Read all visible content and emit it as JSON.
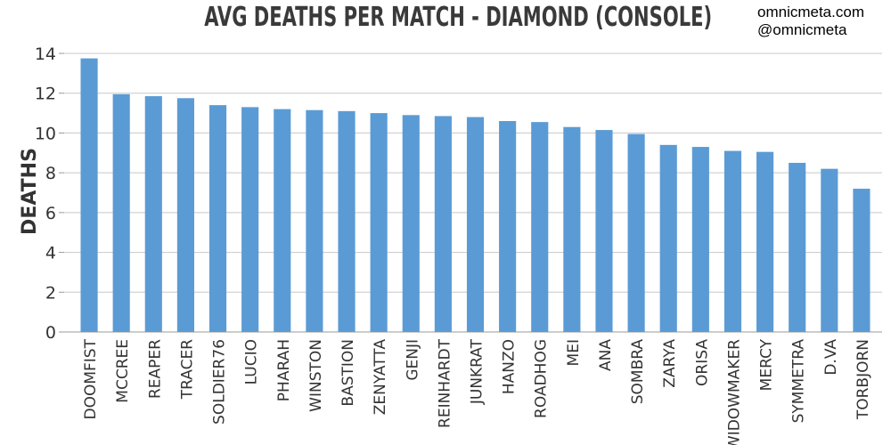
{
  "watermark": {
    "site": "omnicmeta.com",
    "handle": "@omnicmeta"
  },
  "chart_data": {
    "type": "bar",
    "title": "AVG DEATHS PER MATCH - DIAMOND (CONSOLE)",
    "xlabel": "",
    "ylabel": "DEATHS",
    "ylim": [
      0,
      14
    ],
    "yticks": [
      0,
      2,
      4,
      6,
      8,
      10,
      12,
      14
    ],
    "grid": true,
    "bar_color": "#5b9bd5",
    "categories": [
      "DOOMFIST",
      "MCCREE",
      "REAPER",
      "TRACER",
      "SOLDIER76",
      "LUCIO",
      "PHARAH",
      "WINSTON",
      "BASTION",
      "ZENYATTA",
      "GENJI",
      "REINHARDT",
      "JUNKRAT",
      "HANZO",
      "ROADHOG",
      "MEI",
      "ANA",
      "SOMBRA",
      "ZARYA",
      "ORISA",
      "WIDOWMAKER",
      "MERCY",
      "SYMMETRA",
      "D.VA",
      "TORBJORN"
    ],
    "values": [
      13.75,
      11.95,
      11.85,
      11.75,
      11.4,
      11.3,
      11.2,
      11.15,
      11.1,
      11.0,
      10.9,
      10.85,
      10.8,
      10.6,
      10.55,
      10.3,
      10.15,
      9.95,
      9.4,
      9.3,
      9.1,
      9.05,
      8.5,
      8.2,
      7.2
    ]
  }
}
